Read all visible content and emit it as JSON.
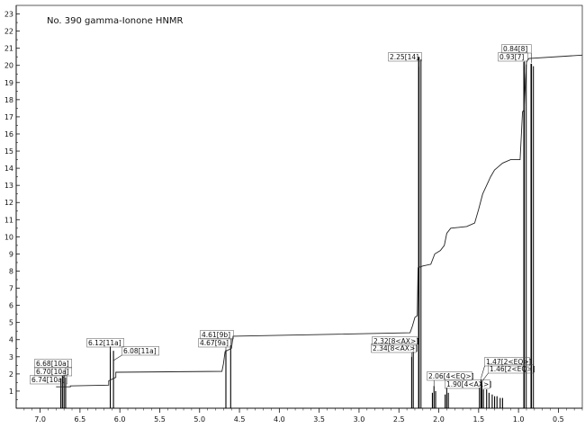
{
  "chart_data": {
    "type": "line",
    "title": "No. 390 gamma-Ionone HNMR",
    "xlabel": "",
    "ylabel": "",
    "xlim": [
      7.3,
      0.2
    ],
    "ylim": [
      0,
      23.5
    ],
    "x_ticks": [
      "7.0",
      "6.5",
      "6.0",
      "5.5",
      "5.0",
      "4.5",
      "4.0",
      "3.5",
      "3.0",
      "2.5",
      "2.0",
      "1.5",
      "1.0",
      "0.5"
    ],
    "y_ticks": [
      "1",
      "2",
      "3",
      "4",
      "5",
      "6",
      "7",
      "8",
      "9",
      "10",
      "11",
      "12",
      "13",
      "14",
      "15",
      "16",
      "17",
      "18",
      "19",
      "20",
      "21",
      "22",
      "23"
    ],
    "grid": false,
    "peaks": [
      {
        "x": 6.74,
        "height": 1.75,
        "label": "6.74[10a]"
      },
      {
        "x": 6.72,
        "height": 1.9,
        "label": ""
      },
      {
        "x": 6.7,
        "height": 1.95,
        "label": "6.70[10a]"
      },
      {
        "x": 6.68,
        "height": 1.8,
        "label": "6.68[10a]"
      },
      {
        "x": 6.12,
        "height": 3.6,
        "label": "6.12[11a]"
      },
      {
        "x": 6.08,
        "height": 3.35,
        "label": "6.08[11a]"
      },
      {
        "x": 4.67,
        "height": 3.4,
        "label": "4.67[9a]"
      },
      {
        "x": 4.61,
        "height": 3.7,
        "label": "4.61[9b]"
      },
      {
        "x": 2.34,
        "height": 3.0,
        "label": "2.34[8<AX>]"
      },
      {
        "x": 2.32,
        "height": 3.3,
        "label": "2.32[8<AX>]"
      },
      {
        "x": 2.25,
        "height": 20.5,
        "label": "2.25[14]"
      },
      {
        "x": 2.08,
        "height": 0.9,
        "label": ""
      },
      {
        "x": 2.06,
        "height": 1.3,
        "label": "2.06[4<EQ>]"
      },
      {
        "x": 2.04,
        "height": 1.0,
        "label": ""
      },
      {
        "x": 1.92,
        "height": 0.8,
        "label": ""
      },
      {
        "x": 1.9,
        "height": 1.2,
        "label": "1.90[4<AX>]"
      },
      {
        "x": 1.88,
        "height": 0.9,
        "label": ""
      },
      {
        "x": 1.49,
        "height": 1.2,
        "label": ""
      },
      {
        "x": 1.47,
        "height": 1.7,
        "label": "1.47[2<EQ>]"
      },
      {
        "x": 1.46,
        "height": 1.5,
        "label": "1.46[2<EQ>]"
      },
      {
        "x": 1.44,
        "height": 1.1,
        "label": ""
      },
      {
        "x": 1.4,
        "height": 1.1,
        "label": ""
      },
      {
        "x": 1.37,
        "height": 0.9,
        "label": ""
      },
      {
        "x": 1.33,
        "height": 0.8,
        "label": ""
      },
      {
        "x": 1.3,
        "height": 0.7,
        "label": ""
      },
      {
        "x": 1.27,
        "height": 0.7,
        "label": ""
      },
      {
        "x": 1.23,
        "height": 0.6,
        "label": ""
      },
      {
        "x": 1.2,
        "height": 0.6,
        "label": ""
      },
      {
        "x": 0.93,
        "height": 20.2,
        "label": "0.93[7]"
      },
      {
        "x": 0.84,
        "height": 20.1,
        "label": "0.84[8]"
      }
    ],
    "integral": [
      [
        6.8,
        1.25
      ],
      [
        6.62,
        1.25
      ],
      [
        6.62,
        1.3
      ],
      [
        6.14,
        1.35
      ],
      [
        6.14,
        1.6
      ],
      [
        6.05,
        1.8
      ],
      [
        6.05,
        2.1
      ],
      [
        4.72,
        2.15
      ],
      [
        4.7,
        2.6
      ],
      [
        4.68,
        3.3
      ],
      [
        4.6,
        3.5
      ],
      [
        4.58,
        4.2
      ],
      [
        2.36,
        4.4
      ],
      [
        2.33,
        4.8
      ],
      [
        2.3,
        5.3
      ],
      [
        2.27,
        5.4
      ],
      [
        2.26,
        8.2
      ],
      [
        2.2,
        8.3
      ],
      [
        2.1,
        8.4
      ],
      [
        2.05,
        9.0
      ],
      [
        1.98,
        9.2
      ],
      [
        1.93,
        9.5
      ],
      [
        1.9,
        10.2
      ],
      [
        1.85,
        10.5
      ],
      [
        1.65,
        10.6
      ],
      [
        1.55,
        10.8
      ],
      [
        1.5,
        11.6
      ],
      [
        1.45,
        12.5
      ],
      [
        1.4,
        13.0
      ],
      [
        1.35,
        13.5
      ],
      [
        1.3,
        13.9
      ],
      [
        1.25,
        14.1
      ],
      [
        1.2,
        14.3
      ],
      [
        1.1,
        14.5
      ],
      [
        0.98,
        14.5
      ],
      [
        0.95,
        17.3
      ],
      [
        0.93,
        17.4
      ],
      [
        0.9,
        20.2
      ],
      [
        0.87,
        20.4
      ],
      [
        0.2,
        20.6
      ]
    ]
  }
}
